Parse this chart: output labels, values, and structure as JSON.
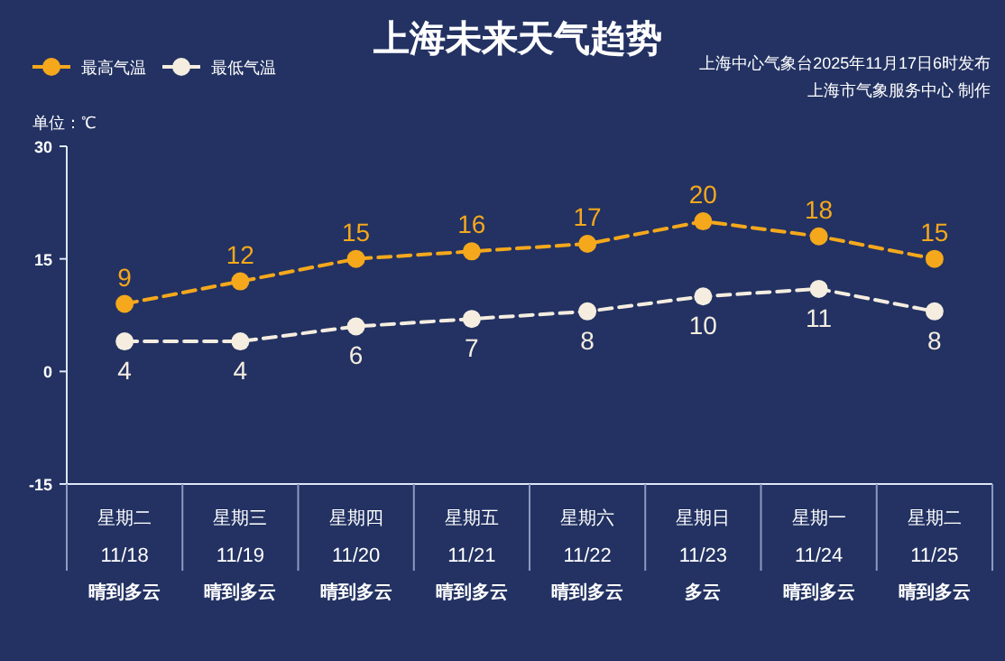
{
  "chart_data": {
    "type": "line",
    "title": "上海未来天气趋势",
    "ylabel": "单位：℃",
    "annotations": [
      "上海中心气象台2025年11月17日6时发布",
      "上海市气象服务中心  制作"
    ],
    "categories": [
      "星期二\n11/18\n晴到多云",
      "星期三\n11/19\n晴到多云",
      "星期四\n11/20\n晴到多云",
      "星期五\n11/21\n晴到多云",
      "星期六\n11/22\n晴到多云",
      "星期日\n11/23\n多云",
      "星期一\n11/24\n晴到多云",
      "星期二\n11/25\n晴到多云"
    ],
    "series": [
      {
        "name": "最高气温",
        "color": "#f5a81c",
        "values": [
          9,
          12,
          15,
          16,
          17,
          20,
          18,
          15
        ]
      },
      {
        "name": "最低气温",
        "color": "#f5ede0",
        "values": [
          4,
          4,
          6,
          7,
          8,
          10,
          11,
          8
        ]
      }
    ],
    "ylim": [
      -15,
      30
    ],
    "yticks": [
      -15,
      0,
      15,
      30
    ],
    "data_labels": true,
    "legend": "top left",
    "marker": "circle",
    "line_style": "dashed",
    "grid": false
  }
}
